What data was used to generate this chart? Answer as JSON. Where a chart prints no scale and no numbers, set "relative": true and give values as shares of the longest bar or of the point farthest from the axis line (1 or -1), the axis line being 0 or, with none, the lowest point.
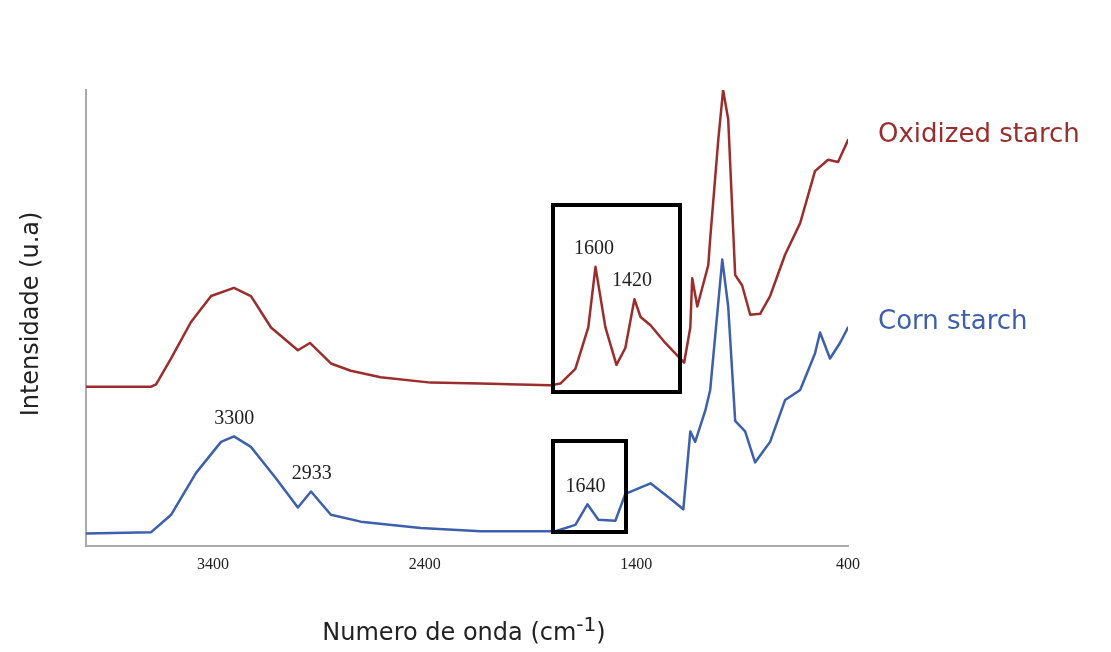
{
  "chart_data": {
    "type": "line",
    "relative": true,
    "xlabel": "Numero de onda (cm$^{-1}$)",
    "ylabel": "Intensidade (u.a)",
    "xlim": [
      4000,
      400
    ],
    "xticks": [
      3400,
      2400,
      1400,
      400
    ],
    "grid": false,
    "marker": "none",
    "line_style": "solid",
    "series": [
      {
        "name": "Oxidized starch",
        "color": "#9b2d2d",
        "x": [
          4000,
          3692,
          3669,
          3598,
          3504,
          3409,
          3301,
          3221,
          3126,
          2999,
          2942,
          2843,
          2749,
          2608,
          2372,
          2136,
          1806,
          1759,
          1688,
          1627,
          1593,
          1546,
          1494,
          1452,
          1409,
          1380,
          1333,
          1263,
          1216,
          1174,
          1145,
          1136,
          1112,
          1060,
          1051,
          1013,
          990,
          966,
          933,
          900,
          862,
          815,
          768,
          697,
          626,
          556,
          494,
          447,
          400
        ],
        "values": [
          0.349,
          0.349,
          0.354,
          0.411,
          0.491,
          0.548,
          0.566,
          0.548,
          0.479,
          0.429,
          0.445,
          0.4,
          0.384,
          0.37,
          0.358,
          0.356,
          0.352,
          0.356,
          0.388,
          0.479,
          0.612,
          0.479,
          0.397,
          0.434,
          0.541,
          0.502,
          0.484,
          0.445,
          0.422,
          0.402,
          0.479,
          0.587,
          0.525,
          0.616,
          0.674,
          0.89,
          1.0,
          0.936,
          0.594,
          0.571,
          0.507,
          0.509,
          0.548,
          0.639,
          0.708,
          0.822,
          0.847,
          0.842,
          0.89
        ]
      },
      {
        "name": "Corn starch",
        "color": "#3d5fae",
        "x": [
          4000,
          3692,
          3598,
          3480,
          3362,
          3301,
          3221,
          3103,
          2999,
          2937,
          2843,
          2702,
          2419,
          2136,
          1782,
          1688,
          1631,
          1579,
          1499,
          1452,
          1333,
          1239,
          1178,
          1145,
          1122,
          1074,
          1051,
          994,
          966,
          933,
          886,
          839,
          768,
          697,
          626,
          556,
          532,
          485,
          438,
          400
        ],
        "values": [
          0.027,
          0.03,
          0.068,
          0.16,
          0.228,
          0.24,
          0.217,
          0.148,
          0.084,
          0.119,
          0.068,
          0.053,
          0.039,
          0.032,
          0.032,
          0.046,
          0.091,
          0.057,
          0.055,
          0.114,
          0.137,
          0.103,
          0.08,
          0.251,
          0.228,
          0.297,
          0.342,
          0.628,
          0.525,
          0.274,
          0.251,
          0.183,
          0.228,
          0.32,
          0.342,
          0.422,
          0.468,
          0.411,
          0.445,
          0.479
        ]
      }
    ],
    "annotations": [
      {
        "text": "3300",
        "x": 3300,
        "y": 0.24
      },
      {
        "text": "2933",
        "x": 2933,
        "y": 0.119
      },
      {
        "text": "1640",
        "x": 1640,
        "y": 0.091
      },
      {
        "text": "1600",
        "x": 1600,
        "y": 0.612
      },
      {
        "text": "1420",
        "x": 1420,
        "y": 0.541
      }
    ]
  }
}
